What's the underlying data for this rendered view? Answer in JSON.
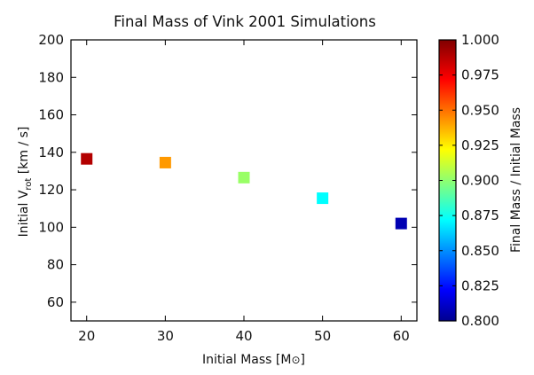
{
  "chart_data": {
    "type": "scatter",
    "title": "Final Mass of Vink 2001 Simulations",
    "xlabel": {
      "main": "Initial Mass [M",
      "symbol": "⊙",
      "close": "]"
    },
    "ylabel": {
      "pre": "Initial V",
      "sub": "rot",
      "post": " [km / s]"
    },
    "xlim": [
      18,
      62
    ],
    "ylim": [
      50,
      200
    ],
    "xticks": [
      20,
      30,
      40,
      50,
      60
    ],
    "yticks": [
      60,
      80,
      100,
      120,
      140,
      160,
      180,
      200
    ],
    "points": [
      {
        "x": 20,
        "y": 136.5,
        "c": 0.99
      },
      {
        "x": 30,
        "y": 134.5,
        "c": 0.945
      },
      {
        "x": 40,
        "y": 126.5,
        "c": 0.905
      },
      {
        "x": 50,
        "y": 115.5,
        "c": 0.875
      },
      {
        "x": 60,
        "y": 102,
        "c": 0.81
      }
    ],
    "colorbar": {
      "label": "Final Mass / Initial Mass",
      "range": [
        0.8,
        1.0
      ],
      "ticks": [
        "0.800",
        "0.825",
        "0.850",
        "0.875",
        "0.900",
        "0.925",
        "0.950",
        "0.975",
        "1.000"
      ],
      "colormap": "jet"
    }
  }
}
